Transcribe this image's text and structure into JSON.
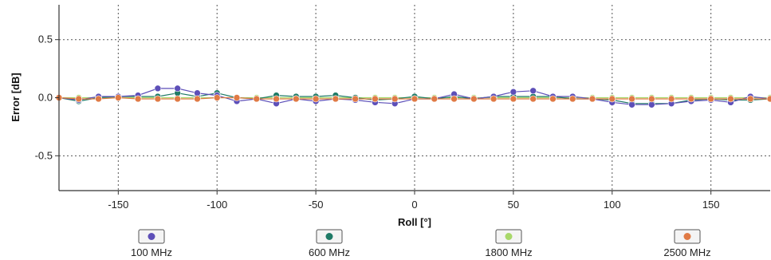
{
  "chart_data": {
    "type": "line",
    "xlabel": "Roll [°]",
    "ylabel": "Error [dB]",
    "xlim": [
      -180,
      180
    ],
    "ylim": [
      -0.8,
      0.8
    ],
    "x_ticks": [
      -150,
      -100,
      -50,
      0,
      50,
      100,
      150
    ],
    "y_ticks": [
      -0.5,
      0.0,
      0.5
    ],
    "x_tick_labels": [
      "-150",
      "-100",
      "-50",
      "0",
      "50",
      "100",
      "150"
    ],
    "y_tick_labels": [
      "-0.5",
      "0.0",
      "0.5"
    ],
    "grid": true,
    "legend_position": "bottom",
    "x": [
      -180,
      -170,
      -160,
      -150,
      -140,
      -130,
      -120,
      -110,
      -100,
      -90,
      -80,
      -70,
      -60,
      -50,
      -40,
      -30,
      -20,
      -10,
      0,
      10,
      20,
      30,
      40,
      50,
      60,
      70,
      80,
      90,
      100,
      110,
      120,
      130,
      140,
      150,
      160,
      170,
      180
    ],
    "series": [
      {
        "name": "100 MHz",
        "color": "#5d4fb8",
        "values": [
          0.0,
          -0.02,
          0.01,
          0.01,
          0.02,
          0.08,
          0.08,
          0.04,
          0.02,
          -0.03,
          -0.01,
          -0.05,
          -0.01,
          -0.03,
          -0.01,
          -0.02,
          -0.04,
          -0.05,
          -0.01,
          -0.01,
          0.03,
          -0.01,
          0.01,
          0.05,
          0.06,
          0.01,
          0.01,
          -0.01,
          -0.04,
          -0.06,
          -0.06,
          -0.05,
          -0.03,
          -0.02,
          -0.04,
          0.01,
          -0.01
        ]
      },
      {
        "name": "600 MHz",
        "color": "#1e7a66",
        "values": [
          0.0,
          -0.03,
          0.0,
          0.01,
          0.01,
          0.01,
          0.04,
          0.01,
          0.04,
          0.0,
          -0.01,
          0.02,
          0.01,
          0.01,
          0.02,
          0.0,
          -0.02,
          -0.01,
          0.01,
          -0.01,
          0.01,
          -0.01,
          0.01,
          0.01,
          0.01,
          0.01,
          -0.01,
          -0.01,
          -0.02,
          -0.05,
          -0.05,
          -0.05,
          -0.02,
          -0.01,
          -0.02,
          -0.02,
          -0.01
        ]
      },
      {
        "name": "1800 MHz",
        "color": "#a8d86a",
        "values": [
          0.0,
          0.0,
          0.0,
          0.0,
          0.0,
          0.0,
          0.0,
          0.0,
          0.0,
          0.0,
          0.0,
          0.0,
          0.0,
          0.0,
          0.0,
          0.0,
          0.0,
          0.0,
          0.0,
          0.0,
          0.0,
          0.0,
          0.0,
          0.0,
          0.0,
          0.0,
          0.0,
          0.0,
          0.0,
          0.0,
          0.0,
          0.0,
          0.0,
          0.0,
          0.0,
          0.0,
          0.0
        ]
      },
      {
        "name": "2500 MHz",
        "color": "#e07a45",
        "values": [
          0.0,
          -0.01,
          -0.01,
          0.0,
          -0.01,
          -0.01,
          -0.01,
          -0.01,
          0.0,
          0.0,
          -0.01,
          -0.01,
          -0.01,
          -0.01,
          -0.01,
          -0.01,
          -0.01,
          -0.01,
          -0.01,
          -0.01,
          -0.01,
          -0.01,
          -0.01,
          -0.01,
          -0.01,
          -0.01,
          -0.01,
          -0.01,
          -0.01,
          -0.01,
          -0.01,
          -0.01,
          -0.01,
          -0.01,
          -0.01,
          -0.01,
          -0.01
        ]
      }
    ]
  }
}
